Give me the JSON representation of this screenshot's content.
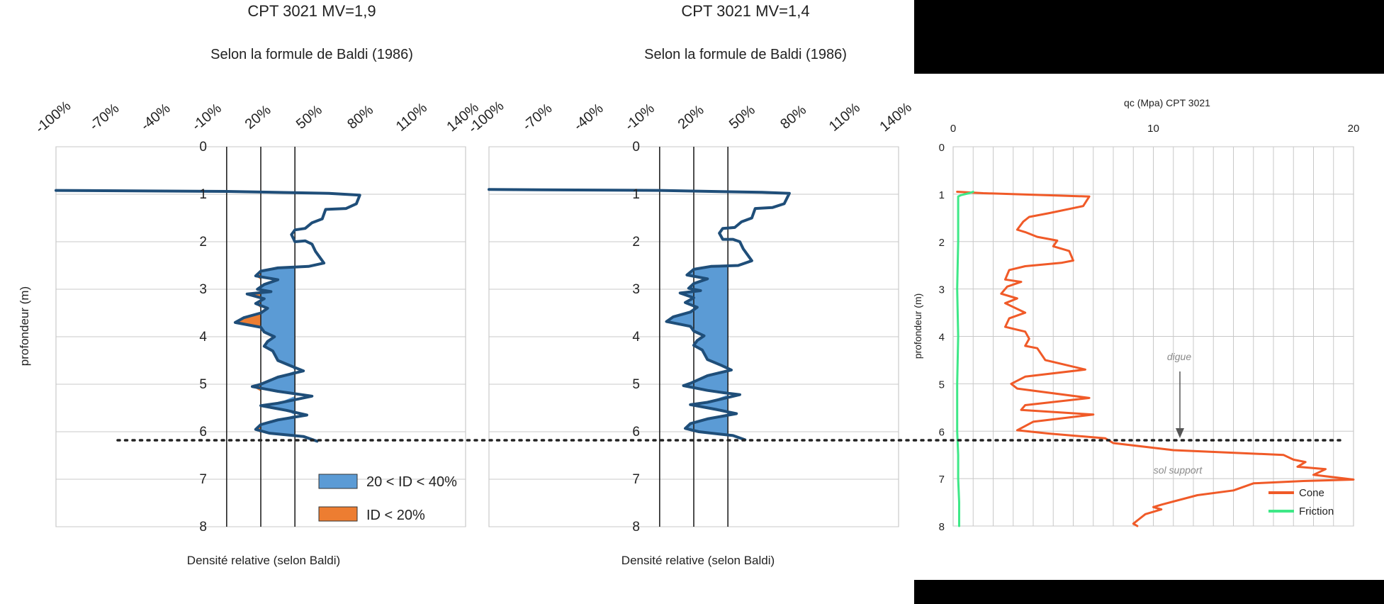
{
  "chart_data": [
    {
      "type": "line",
      "title": "CPT 3021 MV=1,9",
      "subtitle": "Selon la formule de Baldi (1986)",
      "xlabel": "Densité relative (selon Baldi)",
      "ylabel": "profondeur (m)",
      "xlim": [
        -100,
        140
      ],
      "ylim": [
        0,
        8
      ],
      "x_ticks": [
        "-100%",
        "-70%",
        "-40%",
        "-10%",
        "20%",
        "50%",
        "80%",
        "110%",
        "140%"
      ],
      "y_ticks": [
        "0",
        "1",
        "2",
        "3",
        "4",
        "5",
        "6",
        "7",
        "8"
      ],
      "reference_lines_x": [
        0,
        20,
        40
      ],
      "grid": "horizontal",
      "legend_position": "bottom-right",
      "legend": [
        {
          "label": "20 < ID < 40%",
          "color": "#5b9bd5"
        },
        {
          "label": "ID < 20%",
          "color": "#ed7d31"
        }
      ],
      "series": [
        {
          "color": "#1f4e79",
          "points": [
            [
              -100,
              0.92
            ],
            [
              0,
              0.94
            ],
            [
              60,
              0.98
            ],
            [
              78,
              1.02
            ],
            [
              76,
              1.2
            ],
            [
              70,
              1.3
            ],
            [
              58,
              1.32
            ],
            [
              56,
              1.52
            ],
            [
              50,
              1.6
            ],
            [
              46,
              1.72
            ],
            [
              40,
              1.75
            ],
            [
              38,
              1.85
            ],
            [
              40,
              2.0
            ],
            [
              46,
              1.98
            ],
            [
              50,
              2.05
            ],
            [
              52,
              2.2
            ],
            [
              54,
              2.3
            ],
            [
              57,
              2.45
            ],
            [
              48,
              2.52
            ],
            [
              30,
              2.55
            ],
            [
              20,
              2.62
            ],
            [
              17,
              2.72
            ],
            [
              30,
              2.8
            ],
            [
              22,
              2.9
            ],
            [
              18,
              3.0
            ],
            [
              26,
              3.05
            ],
            [
              12,
              3.1
            ],
            [
              22,
              3.2
            ],
            [
              17,
              3.3
            ],
            [
              24,
              3.4
            ],
            [
              20,
              3.5
            ],
            [
              10,
              3.6
            ],
            [
              5,
              3.7
            ],
            [
              20,
              3.8
            ],
            [
              22,
              3.9
            ],
            [
              28,
              4.0
            ],
            [
              24,
              4.1
            ],
            [
              22,
              4.2
            ],
            [
              27,
              4.3
            ],
            [
              30,
              4.5
            ],
            [
              38,
              4.62
            ],
            [
              45,
              4.72
            ],
            [
              30,
              4.85
            ],
            [
              20,
              5.0
            ],
            [
              15,
              5.05
            ],
            [
              30,
              5.15
            ],
            [
              40,
              5.2
            ],
            [
              50,
              5.25
            ],
            [
              30,
              5.4
            ],
            [
              20,
              5.45
            ],
            [
              35,
              5.55
            ],
            [
              47,
              5.65
            ],
            [
              30,
              5.75
            ],
            [
              20,
              5.85
            ],
            [
              17,
              5.95
            ],
            [
              25,
              6.03
            ],
            [
              45,
              6.1
            ],
            [
              53,
              6.2
            ]
          ]
        }
      ]
    },
    {
      "type": "line",
      "title": "CPT 3021 MV=1,4",
      "subtitle": "Selon la formule de Baldi (1986)",
      "xlabel": "Densité relative (selon Baldi)",
      "ylabel": "",
      "xlim": [
        -100,
        140
      ],
      "ylim": [
        0,
        8
      ],
      "x_ticks": [
        "-100%",
        "-70%",
        "-40%",
        "-10%",
        "20%",
        "50%",
        "80%",
        "110%",
        "140%"
      ],
      "y_ticks": [
        "0",
        "1",
        "2",
        "3",
        "4",
        "5",
        "6",
        "7",
        "8"
      ],
      "reference_lines_x": [
        0,
        20,
        40
      ],
      "grid": "horizontal",
      "series": [
        {
          "color": "#1f4e79",
          "points": [
            [
              -100,
              0.9
            ],
            [
              0,
              0.92
            ],
            [
              60,
              0.96
            ],
            [
              76,
              0.98
            ],
            [
              73,
              1.2
            ],
            [
              66,
              1.28
            ],
            [
              56,
              1.3
            ],
            [
              54,
              1.5
            ],
            [
              48,
              1.58
            ],
            [
              44,
              1.7
            ],
            [
              37,
              1.72
            ],
            [
              35,
              1.82
            ],
            [
              37,
              1.95
            ],
            [
              43,
              1.95
            ],
            [
              47,
              2.0
            ],
            [
              49,
              2.15
            ],
            [
              51,
              2.25
            ],
            [
              54,
              2.4
            ],
            [
              46,
              2.5
            ],
            [
              30,
              2.52
            ],
            [
              20,
              2.58
            ],
            [
              16,
              2.7
            ],
            [
              28,
              2.78
            ],
            [
              20,
              2.88
            ],
            [
              17,
              2.98
            ],
            [
              24,
              3.03
            ],
            [
              12,
              3.08
            ],
            [
              20,
              3.18
            ],
            [
              15,
              3.28
            ],
            [
              22,
              3.38
            ],
            [
              18,
              3.48
            ],
            [
              8,
              3.58
            ],
            [
              4,
              3.68
            ],
            [
              18,
              3.78
            ],
            [
              20,
              3.88
            ],
            [
              26,
              3.98
            ],
            [
              22,
              4.08
            ],
            [
              20,
              4.18
            ],
            [
              25,
              4.28
            ],
            [
              28,
              4.48
            ],
            [
              36,
              4.6
            ],
            [
              42,
              4.7
            ],
            [
              28,
              4.82
            ],
            [
              18,
              4.98
            ],
            [
              14,
              5.03
            ],
            [
              28,
              5.13
            ],
            [
              38,
              5.18
            ],
            [
              47,
              5.22
            ],
            [
              28,
              5.38
            ],
            [
              18,
              5.43
            ],
            [
              33,
              5.53
            ],
            [
              45,
              5.62
            ],
            [
              28,
              5.73
            ],
            [
              18,
              5.83
            ],
            [
              15,
              5.93
            ],
            [
              23,
              6.0
            ],
            [
              43,
              6.08
            ],
            [
              50,
              6.17
            ]
          ]
        }
      ]
    },
    {
      "type": "line",
      "title": "qc (Mpa) CPT 3021",
      "xlabel": "",
      "ylabel": "profondeur (m)",
      "xlim": [
        0,
        20
      ],
      "ylim": [
        0,
        8
      ],
      "x_ticks": [
        "0",
        "10",
        "20"
      ],
      "y_ticks": [
        "0",
        "1",
        "2",
        "3",
        "4",
        "5",
        "6",
        "7",
        "8"
      ],
      "grid": "both",
      "legend_position": "bottom-right",
      "annotations": [
        "digue",
        "sol support"
      ],
      "series": [
        {
          "name": "Cone",
          "color": "#f05a28",
          "points": [
            [
              0.2,
              0.95
            ],
            [
              1.5,
              0.98
            ],
            [
              6.8,
              1.05
            ],
            [
              6.5,
              1.25
            ],
            [
              4.8,
              1.4
            ],
            [
              3.8,
              1.48
            ],
            [
              3.5,
              1.58
            ],
            [
              3.2,
              1.75
            ],
            [
              3.6,
              1.8
            ],
            [
              4.2,
              1.9
            ],
            [
              5.2,
              1.98
            ],
            [
              5.0,
              2.1
            ],
            [
              5.8,
              2.2
            ],
            [
              6.0,
              2.4
            ],
            [
              5.4,
              2.45
            ],
            [
              3.6,
              2.52
            ],
            [
              2.8,
              2.6
            ],
            [
              2.6,
              2.8
            ],
            [
              3.4,
              2.85
            ],
            [
              2.7,
              2.95
            ],
            [
              2.4,
              3.1
            ],
            [
              3.2,
              3.2
            ],
            [
              2.6,
              3.3
            ],
            [
              3.6,
              3.5
            ],
            [
              2.8,
              3.62
            ],
            [
              2.6,
              3.8
            ],
            [
              3.6,
              3.9
            ],
            [
              3.8,
              4.05
            ],
            [
              3.6,
              4.2
            ],
            [
              4.2,
              4.25
            ],
            [
              4.6,
              4.5
            ],
            [
              6.6,
              4.7
            ],
            [
              3.6,
              4.85
            ],
            [
              2.9,
              5.0
            ],
            [
              3.2,
              5.1
            ],
            [
              6.8,
              5.3
            ],
            [
              3.6,
              5.45
            ],
            [
              3.4,
              5.55
            ],
            [
              7.0,
              5.65
            ],
            [
              4.0,
              5.8
            ],
            [
              3.2,
              5.98
            ],
            [
              4.8,
              6.05
            ],
            [
              7.6,
              6.15
            ],
            [
              8.0,
              6.25
            ],
            [
              11.0,
              6.4
            ],
            [
              16.5,
              6.5
            ],
            [
              17.0,
              6.6
            ],
            [
              17.6,
              6.65
            ],
            [
              17.2,
              6.75
            ],
            [
              18.6,
              6.8
            ],
            [
              18.0,
              6.92
            ],
            [
              19.6,
              7.0
            ],
            [
              20.0,
              7.02
            ],
            [
              17.5,
              7.05
            ],
            [
              15.0,
              7.1
            ],
            [
              14.0,
              7.25
            ],
            [
              12.2,
              7.35
            ],
            [
              10.4,
              7.55
            ],
            [
              10.0,
              7.6
            ],
            [
              10.4,
              7.65
            ],
            [
              9.6,
              7.75
            ],
            [
              9.3,
              7.85
            ],
            [
              9.0,
              7.95
            ],
            [
              9.2,
              8.0
            ]
          ]
        },
        {
          "name": "Friction",
          "color": "#3ee887",
          "points": [
            [
              1.0,
              0.95
            ],
            [
              0.8,
              0.98
            ],
            [
              0.4,
              1.02
            ],
            [
              0.25,
              1.05
            ],
            [
              0.25,
              2.0
            ],
            [
              0.2,
              3.0
            ],
            [
              0.25,
              4.0
            ],
            [
              0.2,
              5.0
            ],
            [
              0.2,
              6.0
            ],
            [
              0.25,
              6.5
            ],
            [
              0.25,
              7.0
            ],
            [
              0.3,
              7.5
            ],
            [
              0.3,
              8.0
            ]
          ]
        }
      ]
    }
  ]
}
